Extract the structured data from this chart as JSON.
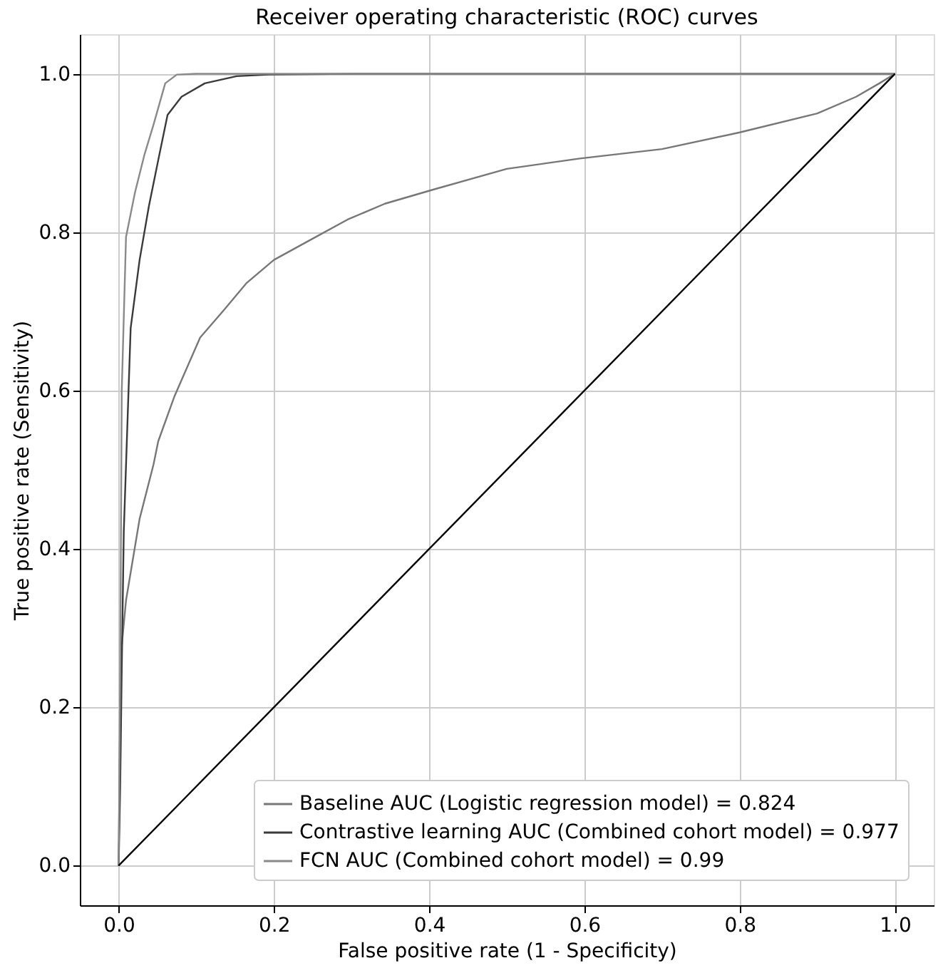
{
  "chart_data": {
    "type": "line",
    "title": "Receiver operating characteristic (ROC) curves",
    "xlabel": "False positive rate (1 - Specificity)",
    "ylabel": "True positive rate (Sensitivity)",
    "xlim": [
      -0.05,
      1.05
    ],
    "ylim": [
      -0.05,
      1.05
    ],
    "xticks": [
      {
        "value": 0,
        "label": "0.0"
      },
      0.2,
      0.4,
      0.6,
      0.8,
      {
        "value": 1,
        "label": "1.0"
      }
    ],
    "yticks": [
      {
        "value": 0,
        "label": "0.0"
      },
      0.2,
      0.4,
      0.6,
      0.8,
      {
        "value": 1,
        "label": "1.0"
      }
    ],
    "grid": true,
    "legend": "bottom right",
    "series": [
      {
        "name": "Baseline AUC (Logistic regression model) = 0.824",
        "color": "#777777",
        "x": [
          0,
          0.002,
          0.004,
          0.0095,
          0.027,
          0.045,
          0.051,
          0.072,
          0.105,
          0.135,
          0.165,
          0.2,
          0.254,
          0.295,
          0.343,
          0.406,
          0.5,
          0.594,
          0.7,
          0.8,
          0.9,
          0.95,
          0.98,
          1
        ],
        "values": [
          0,
          0.2,
          0.278,
          0.335,
          0.438,
          0.507,
          0.536,
          0.593,
          0.667,
          0.701,
          0.736,
          0.765,
          0.794,
          0.816,
          0.836,
          0.854,
          0.88,
          0.893,
          0.905,
          0.926,
          0.95,
          0.971,
          0.988,
          1
        ]
      },
      {
        "name": "Contrastive learning AUC (Combined cohort model) = 0.977",
        "color": "#3a3a3a",
        "x": [
          0,
          0.002,
          0.004,
          0.0066,
          0.0125,
          0.0155,
          0.027,
          0.039,
          0.051,
          0.063,
          0.081,
          0.111,
          0.152,
          0.194,
          0.3,
          1
        ],
        "values": [
          0,
          0.1,
          0.249,
          0.421,
          0.593,
          0.679,
          0.765,
          0.833,
          0.891,
          0.948,
          0.971,
          0.988,
          0.997,
          0.999,
          1,
          1
        ]
      },
      {
        "name": "FCN AUC (Combined cohort model) = 0.99",
        "color": "#8a8a8a",
        "x": [
          0,
          0.002,
          0.003,
          0.004,
          0.0095,
          0.021,
          0.033,
          0.045,
          0.06,
          0.075,
          0.1,
          1
        ],
        "values": [
          0,
          0.25,
          0.42,
          0.6,
          0.794,
          0.85,
          0.897,
          0.936,
          0.988,
          0.999,
          1,
          1
        ]
      },
      {
        "color": "#000000",
        "x": [
          0,
          1
        ],
        "values": [
          0,
          1
        ]
      }
    ]
  }
}
